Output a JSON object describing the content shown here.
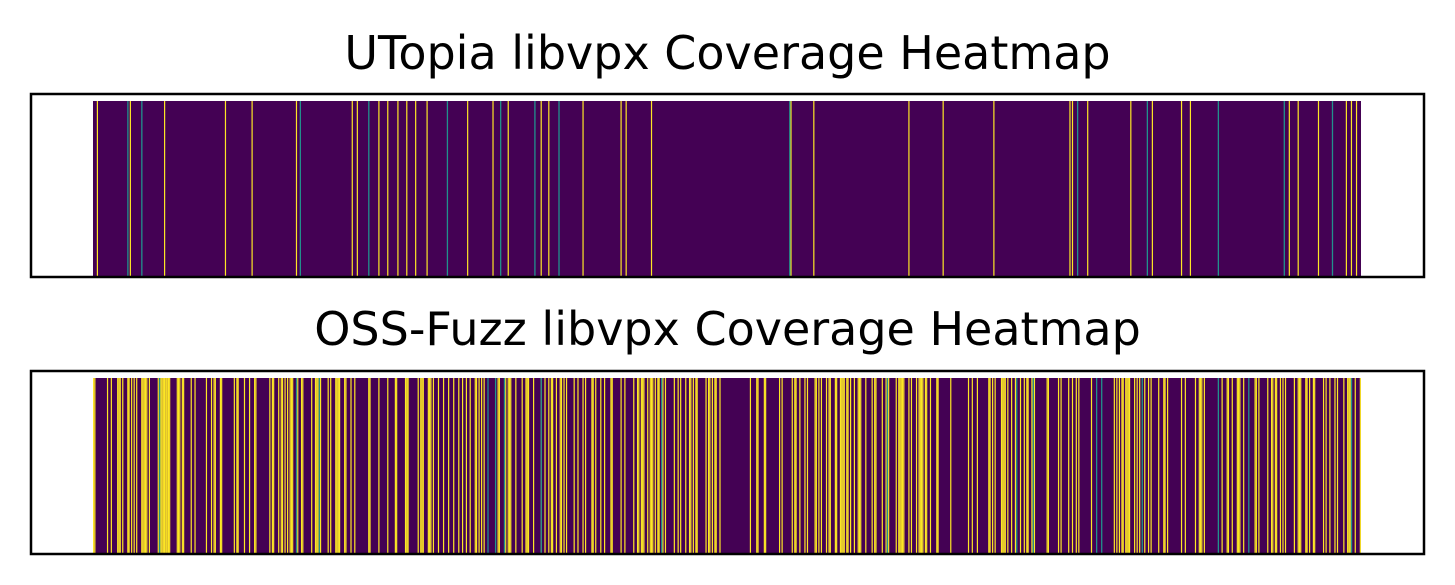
{
  "colors": {
    "low": "#440154",
    "mid": "#21918c",
    "high": "#fde725",
    "frame": "#000000"
  },
  "chart_data": [
    {
      "type": "heatmap",
      "title": "UTopia libvpx Coverage Heatmap",
      "xlabel": "",
      "ylabel": "",
      "colormap": "viridis",
      "ticks": false,
      "grid": false,
      "x_extent": [
        0,
        1000
      ],
      "value_range": [
        0,
        1
      ],
      "baseline_value": 0,
      "covered_x": [
        3,
        29,
        56,
        104,
        125,
        160,
        204,
        208,
        225,
        232,
        240,
        247,
        254,
        263,
        295,
        315,
        327,
        353,
        359,
        386,
        416,
        420,
        440,
        550,
        568,
        643,
        670,
        710,
        770,
        772,
        784,
        818,
        835,
        858,
        865,
        943,
        950,
        966,
        988,
        992,
        996
      ],
      "mid_x": [
        27,
        38,
        163,
        217,
        279,
        321,
        348,
        367,
        549,
        776,
        831,
        887,
        939,
        977
      ]
    },
    {
      "type": "heatmap",
      "title": "OSS-Fuzz libvpx Coverage Heatmap",
      "xlabel": "",
      "ylabel": "",
      "colormap": "viridis",
      "ticks": false,
      "grid": false,
      "x_extent": [
        0,
        1000
      ],
      "value_range": [
        0,
        1
      ],
      "baseline_value": 0,
      "covered_density": 0.34,
      "covered_seed": 1337,
      "mid_x": [
        52,
        160,
        178,
        311,
        317,
        324,
        353,
        448,
        626,
        728,
        741,
        791,
        795,
        827,
        887,
        911,
        992
      ],
      "gap_x_ranges": [
        [
          498,
          518
        ],
        [
          788,
          803
        ]
      ]
    }
  ]
}
